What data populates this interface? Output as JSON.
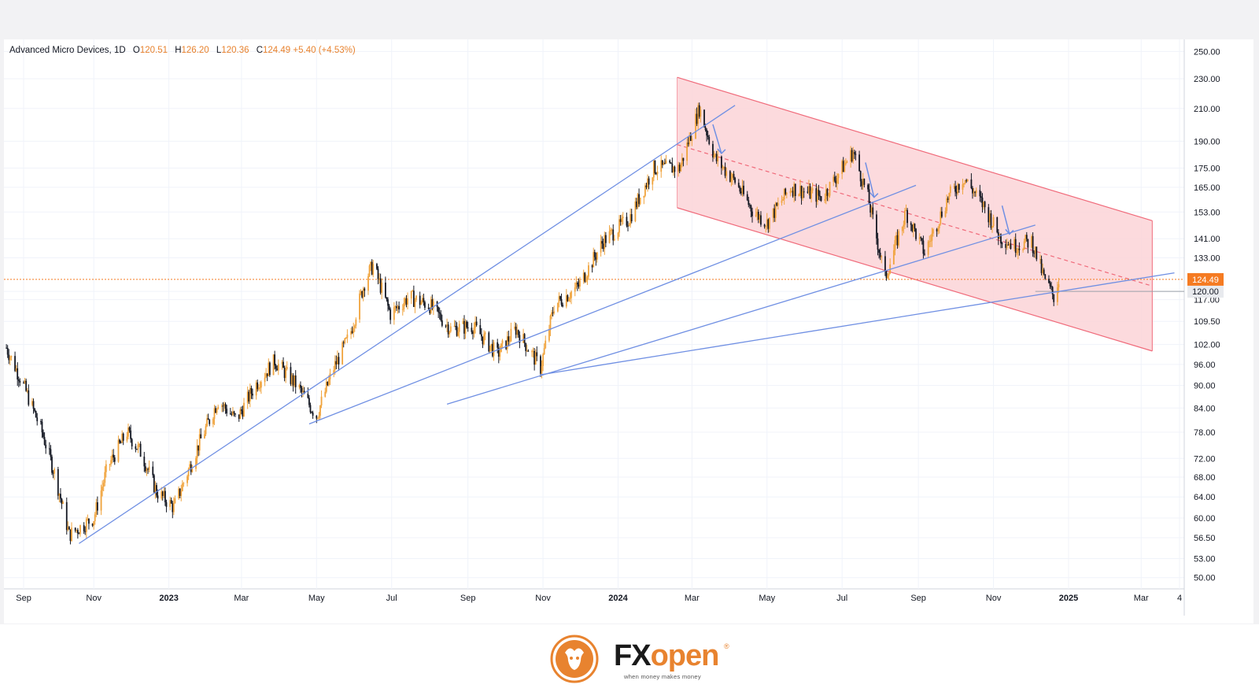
{
  "header": {
    "symbol": "Advanced Micro Devices, 1D",
    "open_label": "O",
    "open": "120.51",
    "high_label": "H",
    "high": "126.20",
    "low_label": "L",
    "low": "120.36",
    "close_label": "C",
    "close": "124.49",
    "change": "+5.40 (+4.53%)"
  },
  "chart_data": {
    "type": "candlestick",
    "x_axis_labels": [
      "Sep",
      "Nov",
      "2023",
      "Mar",
      "May",
      "Jul",
      "Sep",
      "Nov",
      "2024",
      "Mar",
      "May",
      "Jul",
      "Sep",
      "Nov",
      "2025",
      "Mar",
      "4"
    ],
    "y_axis_labels": [
      "250.00",
      "230.00",
      "210.00",
      "190.00",
      "175.00",
      "165.00",
      "153.00",
      "141.00",
      "133.00",
      "124.49",
      "120.00",
      "117.00",
      "109.50",
      "102.00",
      "96.00",
      "90.00",
      "84.00",
      "78.00",
      "72.00",
      "68.00",
      "64.00",
      "60.00",
      "56.50",
      "53.00",
      "50.00"
    ],
    "y_scale": "log",
    "x_range": [
      "2022-08-20",
      "2025-04-05"
    ],
    "last_price": 124.49,
    "horizontal_level": 120.0,
    "price_path": [
      [
        "2022-08-22",
        101
      ],
      [
        "2022-09-05",
        90
      ],
      [
        "2022-09-20",
        78
      ],
      [
        "2022-10-01",
        68
      ],
      [
        "2022-10-12",
        57
      ],
      [
        "2022-11-01",
        60
      ],
      [
        "2022-11-12",
        70
      ],
      [
        "2022-11-28",
        78
      ],
      [
        "2022-12-10",
        73
      ],
      [
        "2022-12-22",
        65
      ],
      [
        "2023-01-05",
        62
      ],
      [
        "2023-01-25",
        75
      ],
      [
        "2023-02-10",
        86
      ],
      [
        "2023-02-25",
        81
      ],
      [
        "2023-03-12",
        90
      ],
      [
        "2023-03-28",
        97
      ],
      [
        "2023-04-15",
        90
      ],
      [
        "2023-05-01",
        82
      ],
      [
        "2023-05-15",
        95
      ],
      [
        "2023-05-28",
        105
      ],
      [
        "2023-06-10",
        125
      ],
      [
        "2023-06-16",
        130
      ],
      [
        "2023-06-30",
        112
      ],
      [
        "2023-07-15",
        118
      ],
      [
        "2023-08-01",
        115
      ],
      [
        "2023-08-18",
        107
      ],
      [
        "2023-09-05",
        108
      ],
      [
        "2023-09-25",
        99
      ],
      [
        "2023-10-10",
        107
      ],
      [
        "2023-10-30",
        95
      ],
      [
        "2023-11-10",
        115
      ],
      [
        "2023-11-30",
        122
      ],
      [
        "2023-12-20",
        140
      ],
      [
        "2024-01-10",
        150
      ],
      [
        "2024-01-30",
        175
      ],
      [
        "2024-02-20",
        175
      ],
      [
        "2024-03-07",
        210
      ],
      [
        "2024-03-20",
        180
      ],
      [
        "2024-04-05",
        168
      ],
      [
        "2024-04-20",
        153
      ],
      [
        "2024-05-01",
        148
      ],
      [
        "2024-05-20",
        165
      ],
      [
        "2024-06-15",
        160
      ],
      [
        "2024-07-10",
        184
      ],
      [
        "2024-07-22",
        160
      ],
      [
        "2024-08-05",
        125
      ],
      [
        "2024-08-22",
        153
      ],
      [
        "2024-09-06",
        135
      ],
      [
        "2024-09-25",
        160
      ],
      [
        "2024-10-08",
        170
      ],
      [
        "2024-10-25",
        155
      ],
      [
        "2024-11-06",
        142
      ],
      [
        "2024-11-18",
        138
      ],
      [
        "2024-12-02",
        140
      ],
      [
        "2024-12-12",
        125
      ],
      [
        "2024-12-20",
        118
      ],
      [
        "2024-12-24",
        124.49
      ]
    ],
    "channel": {
      "upper": [
        [
          "2024-02-18",
          231
        ],
        [
          "2025-03-10",
          149
        ]
      ],
      "lower": [
        [
          "2024-02-18",
          155
        ],
        [
          "2025-03-10",
          100
        ]
      ],
      "mid": [
        [
          "2024-02-18",
          188
        ],
        [
          "2025-03-10",
          122
        ]
      ]
    },
    "trendlines": [
      [
        [
          "2022-10-20",
          55.5
        ],
        [
          "2024-04-05",
          212
        ]
      ],
      [
        [
          "2023-04-25",
          80
        ],
        [
          "2024-08-30",
          166
        ]
      ],
      [
        [
          "2023-08-15",
          85
        ],
        [
          "2024-12-05",
          147
        ]
      ],
      [
        [
          "2023-10-30",
          93
        ],
        [
          "2025-03-28",
          127
        ]
      ]
    ],
    "arrows": [
      [
        [
          "2024-03-18",
          200
        ],
        [
          "2024-03-25",
          183
        ]
      ],
      [
        [
          "2024-07-20",
          178
        ],
        [
          "2024-07-27",
          160
        ]
      ],
      [
        [
          "2024-11-08",
          156
        ],
        [
          "2024-11-14",
          143
        ]
      ]
    ],
    "colors": {
      "up": "#f0a33c",
      "down": "#131722",
      "channel_fill": "#fbd3d7",
      "channel_line": "#f06a7a",
      "trendline": "#6f8fe3",
      "last_price": "#f57b22",
      "grid": "#f0f3fa"
    }
  },
  "footer": {
    "brand_fx": "FX",
    "brand_open": "open",
    "registered": "®",
    "tagline": "when money makes money"
  }
}
